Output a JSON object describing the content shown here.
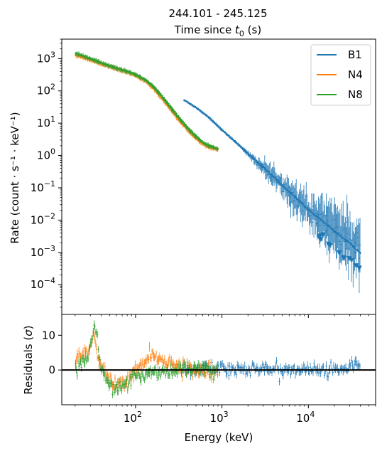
{
  "chart_data": [
    {
      "type": "line",
      "title_line1": "244.101 - 245.125",
      "title_line2_prefix": "Time since ",
      "title_line2_var": "t",
      "title_line2_sub": "0",
      "title_line2_suffix": " (s)",
      "ylabel": "Rate (count · s⁻¹ · keV⁻¹)",
      "yscale": "log",
      "xscale": "log",
      "xlim": [
        14,
        60000
      ],
      "ylim": [
        1.2e-05,
        4000
      ],
      "yticks": [
        {
          "mant": "10",
          "exp": "3",
          "value": 1000
        },
        {
          "mant": "10",
          "exp": "2",
          "value": 100
        },
        {
          "mant": "10",
          "exp": "1",
          "value": 10
        },
        {
          "mant": "10",
          "exp": "0",
          "value": 1
        },
        {
          "mant": "10",
          "exp": "−1",
          "value": 0.1
        },
        {
          "mant": "10",
          "exp": "−2",
          "value": 0.01
        },
        {
          "mant": "10",
          "exp": "−3",
          "value": 0.001
        },
        {
          "mant": "10",
          "exp": "−4",
          "value": 0.0001
        }
      ],
      "legend_position": "top-right",
      "series": [
        {
          "name": "B1",
          "color": "#1f77b4",
          "model": [
            [
              360,
              52
            ],
            [
              500,
              30
            ],
            [
              700,
              15
            ],
            [
              1000,
              6
            ],
            [
              1500,
              2.3
            ],
            [
              2000,
              1.1
            ],
            [
              3000,
              0.42
            ],
            [
              4000,
              0.2
            ],
            [
              5000,
              0.11
            ],
            [
              7000,
              0.05
            ],
            [
              10000,
              0.02
            ],
            [
              15000,
              0.0085
            ],
            [
              20000,
              0.0043
            ],
            [
              30000,
              0.0019
            ],
            [
              40000,
              0.0009
            ]
          ]
        },
        {
          "name": "N4",
          "color": "#ff7f0e",
          "model": [
            [
              20,
              1300
            ],
            [
              30,
              900
            ],
            [
              40,
              680
            ],
            [
              60,
              480
            ],
            [
              80,
              380
            ],
            [
              100,
              300
            ],
            [
              130,
              200
            ],
            [
              160,
              120
            ],
            [
              200,
              60
            ],
            [
              250,
              28
            ],
            [
              300,
              15
            ],
            [
              400,
              6
            ],
            [
              500,
              3.3
            ],
            [
              600,
              2.3
            ],
            [
              700,
              1.8
            ],
            [
              900,
              1.5
            ]
          ]
        },
        {
          "name": "N8",
          "color": "#2ca02c",
          "model": [
            [
              20,
              1450
            ],
            [
              30,
              1000
            ],
            [
              40,
              730
            ],
            [
              60,
              500
            ],
            [
              80,
              400
            ],
            [
              100,
              320
            ],
            [
              130,
              215
            ],
            [
              160,
              135
            ],
            [
              200,
              68
            ],
            [
              250,
              32
            ],
            [
              300,
              17
            ],
            [
              400,
              7
            ],
            [
              500,
              3.8
            ],
            [
              600,
              2.5
            ],
            [
              700,
              2
            ],
            [
              900,
              1.6
            ]
          ]
        }
      ]
    },
    {
      "type": "scatter",
      "ylabel_prefix": "Residuals (",
      "ylabel_sym": "σ",
      "ylabel_suffix": ")",
      "xlabel": "Energy (keV)",
      "xscale": "log",
      "xlim": [
        14,
        60000
      ],
      "ylim": [
        -10,
        16
      ],
      "yticks": [
        "0",
        "10"
      ],
      "xticks": [
        {
          "mant": "10",
          "exp": "2",
          "value": 100
        },
        {
          "mant": "10",
          "exp": "3",
          "value": 1000
        },
        {
          "mant": "10",
          "exp": "4",
          "value": 10000
        }
      ],
      "zero_line": 0,
      "series": [
        {
          "name": "B1",
          "color": "#1f77b4",
          "x_range": [
            350,
            40000
          ],
          "trend": [
            [
              350,
              0.3
            ],
            [
              1000,
              0.5
            ],
            [
              5000,
              0.2
            ],
            [
              20000,
              0
            ],
            [
              40000,
              1.5
            ]
          ],
          "spread": 1.6,
          "count": 190
        },
        {
          "name": "N4",
          "color": "#ff7f0e",
          "x_range": [
            20,
            900
          ],
          "trend": [
            [
              20,
              3
            ],
            [
              28,
              5
            ],
            [
              33,
              10
            ],
            [
              38,
              2
            ],
            [
              45,
              -1
            ],
            [
              55,
              -4
            ],
            [
              70,
              -4.5
            ],
            [
              90,
              -2
            ],
            [
              110,
              1
            ],
            [
              150,
              4.5
            ],
            [
              200,
              3
            ],
            [
              300,
              1
            ],
            [
              500,
              0
            ],
            [
              900,
              0
            ]
          ],
          "spread": 1.7,
          "count": 170
        },
        {
          "name": "N8",
          "color": "#2ca02c",
          "x_range": [
            20,
            900
          ],
          "trend": [
            [
              20,
              1
            ],
            [
              28,
              4
            ],
            [
              34,
              13
            ],
            [
              40,
              0
            ],
            [
              50,
              -4
            ],
            [
              65,
              -5.5
            ],
            [
              80,
              -4
            ],
            [
              100,
              -2
            ],
            [
              150,
              -0.5
            ],
            [
              300,
              0
            ],
            [
              900,
              0.3
            ]
          ],
          "spread": 1.7,
          "count": 170
        }
      ]
    }
  ]
}
